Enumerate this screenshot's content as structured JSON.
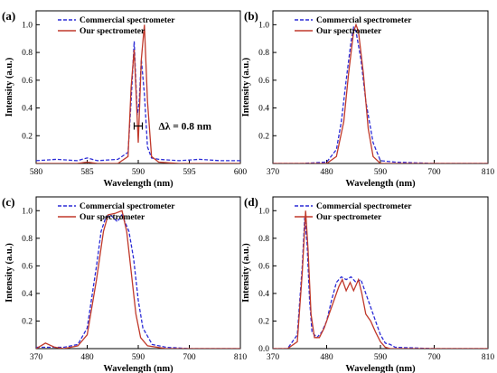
{
  "chart_data": [
    {
      "panel_label": "(a)",
      "type": "line",
      "xlabel": "Wavelength (nm)",
      "ylabel": "Intensity (a.u.)",
      "xlim": [
        580,
        600
      ],
      "ylim": [
        0,
        1.1
      ],
      "x_ticks": [
        580,
        585,
        590,
        595,
        600
      ],
      "y_ticks": [
        0.2,
        0.4,
        0.6,
        0.8,
        1.0
      ],
      "y_tick_labels": [
        "0.2",
        "0.4",
        "0.6",
        "0.8",
        "1.0"
      ],
      "legend": {
        "position": "top-left"
      },
      "annotation": "Δλ = 0.8 nm",
      "series": [
        {
          "name": "Commercial spectrometer",
          "style": "dashed",
          "color": "#2b2bd6",
          "x": [
            580,
            582,
            584,
            585,
            586,
            588,
            589.0,
            589.3,
            589.6,
            589.9,
            590.1,
            590.3,
            590.6,
            590.9,
            591.3,
            592,
            594,
            596,
            598,
            600
          ],
          "y": [
            0.02,
            0.03,
            0.02,
            0.04,
            0.02,
            0.03,
            0.08,
            0.45,
            0.88,
            0.35,
            0.45,
            0.75,
            0.5,
            0.12,
            0.04,
            0.03,
            0.02,
            0.03,
            0.02,
            0.02
          ]
        },
        {
          "name": "Our spectrometer",
          "style": "solid",
          "color": "#c0392b",
          "x": [
            580,
            582,
            584,
            585,
            586,
            588,
            589.0,
            589.3,
            589.6,
            590.0,
            590.3,
            590.6,
            590.9,
            591.3,
            592,
            594,
            596,
            598,
            600
          ],
          "y": [
            0.0,
            0.0,
            0.0,
            0.01,
            0.0,
            0.0,
            0.05,
            0.55,
            0.82,
            0.15,
            0.75,
            1.0,
            0.45,
            0.05,
            0.01,
            0.0,
            0.0,
            0.0,
            0.0
          ]
        }
      ]
    },
    {
      "panel_label": "(b)",
      "type": "line",
      "xlabel": "Wavelength (nm)",
      "ylabel": "Intensity (a.u.)",
      "xlim": [
        370,
        810
      ],
      "ylim": [
        0,
        1.1
      ],
      "x_ticks": [
        370,
        480,
        590,
        700,
        810
      ],
      "y_ticks": [
        0.2,
        0.4,
        0.6,
        0.8,
        1.0
      ],
      "y_tick_labels": [
        "0.2",
        "0.4",
        "0.6",
        "0.8",
        "1.0"
      ],
      "legend": {
        "position": "top-left"
      },
      "series": [
        {
          "name": "Commercial spectrometer",
          "style": "dashed",
          "color": "#2b2bd6",
          "x": [
            370,
            430,
            480,
            500,
            510,
            520,
            530,
            535,
            540,
            550,
            560,
            575,
            590,
            620,
            700,
            810
          ],
          "y": [
            0.0,
            0.0,
            0.01,
            0.1,
            0.3,
            0.6,
            0.88,
            0.98,
            0.95,
            0.75,
            0.45,
            0.15,
            0.02,
            0.01,
            0.0,
            0.0
          ]
        },
        {
          "name": "Our spectrometer",
          "style": "solid",
          "color": "#c0392b",
          "x": [
            370,
            430,
            480,
            500,
            515,
            525,
            535,
            540,
            545,
            555,
            565,
            575,
            590,
            620,
            700,
            810
          ],
          "y": [
            0.0,
            0.0,
            0.0,
            0.05,
            0.3,
            0.65,
            0.95,
            1.0,
            0.95,
            0.65,
            0.25,
            0.05,
            0.0,
            0.0,
            0.0,
            0.0
          ]
        }
      ]
    },
    {
      "panel_label": "(c)",
      "type": "line",
      "xlabel": "Wavelength (nm)",
      "ylabel": "Intensity (a.u.)",
      "xlim": [
        370,
        810
      ],
      "ylim": [
        0,
        1.1
      ],
      "x_ticks": [
        370,
        480,
        590,
        700,
        810
      ],
      "y_ticks": [
        0.2,
        0.4,
        0.6,
        0.8,
        1.0
      ],
      "y_tick_labels": [
        "0.2",
        "0.4",
        "0.6",
        "0.8",
        "1.0"
      ],
      "legend": {
        "position": "top-left"
      },
      "series": [
        {
          "name": "Commercial spectrometer",
          "style": "dashed",
          "color": "#2b2bd6",
          "x": [
            370,
            400,
            430,
            460,
            480,
            500,
            510,
            520,
            530,
            545,
            555,
            570,
            580,
            590,
            600,
            620,
            650,
            700,
            810
          ],
          "y": [
            0.01,
            0.01,
            0.01,
            0.03,
            0.15,
            0.6,
            0.85,
            0.95,
            0.97,
            0.92,
            0.97,
            0.85,
            0.65,
            0.35,
            0.15,
            0.03,
            0.01,
            0.0,
            0.0
          ]
        },
        {
          "name": "Our spectrometer",
          "style": "solid",
          "color": "#c0392b",
          "x": [
            370,
            390,
            410,
            430,
            460,
            480,
            500,
            515,
            525,
            540,
            555,
            565,
            575,
            585,
            595,
            610,
            650,
            700,
            810
          ],
          "y": [
            0.0,
            0.04,
            0.01,
            0.0,
            0.02,
            0.1,
            0.5,
            0.85,
            0.97,
            0.98,
            1.0,
            0.85,
            0.55,
            0.25,
            0.08,
            0.02,
            0.0,
            0.0,
            0.0
          ]
        }
      ]
    },
    {
      "panel_label": "(d)",
      "type": "line",
      "xlabel": "Wavelength (nm)",
      "ylabel": "Intensity (a.u.)",
      "xlim": [
        370,
        810
      ],
      "ylim": [
        0,
        1.1
      ],
      "x_ticks": [
        370,
        480,
        590,
        700,
        810
      ],
      "y_ticks": [
        0.0,
        0.2,
        0.4,
        0.6,
        0.8,
        1.0
      ],
      "y_tick_labels": [
        "0.0",
        "0.2",
        "0.4",
        "0.6",
        "0.8",
        "1.0"
      ],
      "legend": {
        "position": "top-left"
      },
      "series": [
        {
          "name": "Commercial spectrometer",
          "style": "dashed",
          "color": "#2b2bd6",
          "x": [
            370,
            400,
            420,
            430,
            435,
            440,
            445,
            450,
            460,
            470,
            480,
            490,
            500,
            510,
            520,
            530,
            540,
            550,
            560,
            570,
            580,
            590,
            600,
            610,
            620,
            700,
            810
          ],
          "y": [
            0.0,
            0.0,
            0.1,
            0.6,
            0.95,
            0.75,
            0.35,
            0.12,
            0.08,
            0.12,
            0.2,
            0.35,
            0.48,
            0.52,
            0.5,
            0.52,
            0.48,
            0.5,
            0.4,
            0.3,
            0.2,
            0.1,
            0.04,
            0.03,
            0.01,
            0.0,
            0.0
          ]
        },
        {
          "name": "Our spectrometer",
          "style": "solid",
          "color": "#c0392b",
          "x": [
            370,
            400,
            420,
            430,
            437,
            442,
            448,
            455,
            465,
            475,
            485,
            495,
            505,
            512,
            520,
            528,
            535,
            545,
            552,
            560,
            570,
            580,
            590,
            600,
            610,
            700,
            810
          ],
          "y": [
            0.0,
            0.0,
            0.05,
            0.55,
            1.0,
            0.72,
            0.25,
            0.08,
            0.08,
            0.15,
            0.25,
            0.35,
            0.45,
            0.5,
            0.42,
            0.48,
            0.42,
            0.5,
            0.4,
            0.25,
            0.2,
            0.12,
            0.05,
            0.01,
            0.0,
            0.0,
            0.0
          ]
        }
      ]
    }
  ]
}
